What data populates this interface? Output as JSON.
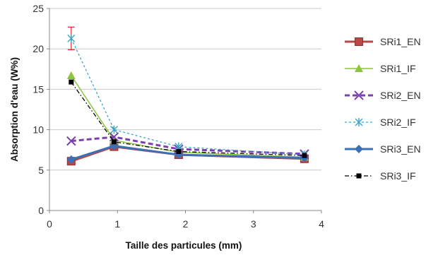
{
  "chart_data": {
    "type": "line",
    "xlabel": "Taille des particules (mm)",
    "ylabel": "Absorption d'eau (W%)",
    "xlim": [
      0,
      4
    ],
    "ylim": [
      0,
      25
    ],
    "xticks": [
      0,
      1,
      2,
      3,
      4
    ],
    "yticks": [
      0,
      5,
      10,
      15,
      20,
      25
    ],
    "grid": "horizontal",
    "legend_position": "right",
    "series": [
      {
        "name": "SRi1_EN",
        "color": "#b94747",
        "dash": "solid",
        "marker": "square",
        "x": [
          0.32,
          0.95,
          1.9,
          3.75
        ],
        "y": [
          6.1,
          7.9,
          6.9,
          6.4
        ]
      },
      {
        "name": "SRi1_IF",
        "color": "#8cc63f",
        "dash": "solid",
        "marker": "triangle",
        "x": [
          0.32,
          0.95,
          1.9,
          3.75
        ],
        "y": [
          16.7,
          8.7,
          7.2,
          6.6
        ]
      },
      {
        "name": "SRi2_EN",
        "color": "#7b3fb0",
        "dash": "dashed",
        "marker": "x",
        "x": [
          0.32,
          0.95,
          1.9,
          3.75
        ],
        "y": [
          8.6,
          9.1,
          7.6,
          7.0
        ]
      },
      {
        "name": "SRi2_IF",
        "color": "#3aa5c8",
        "dash": "dotted",
        "marker": "star",
        "x": [
          0.32,
          0.95,
          1.9,
          3.75
        ],
        "y": [
          21.3,
          10.0,
          7.9,
          6.9
        ],
        "error": [
          1.4,
          0,
          0,
          0
        ]
      },
      {
        "name": "SRi3_EN",
        "color": "#3d6fb6",
        "dash": "solid",
        "marker": "diamond",
        "x": [
          0.32,
          0.95,
          1.9,
          3.75
        ],
        "y": [
          6.3,
          8.0,
          6.9,
          6.5
        ]
      },
      {
        "name": "SRi3_IF",
        "color": "#000000",
        "dash": "dashdot",
        "marker": "square-small",
        "x": [
          0.32,
          0.95,
          1.9,
          3.75
        ],
        "y": [
          15.9,
          8.5,
          7.3,
          6.8
        ]
      }
    ]
  }
}
